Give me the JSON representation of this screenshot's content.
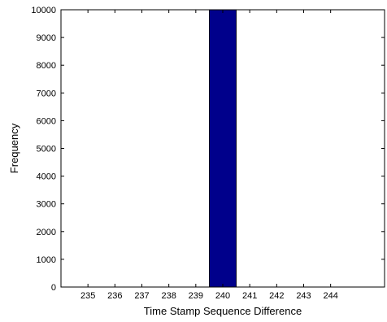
{
  "chart_data": {
    "type": "bar",
    "title": "",
    "xlabel": "Time Stamp Sequence Difference",
    "ylabel": "Frequency",
    "xlim": [
      234,
      246
    ],
    "ylim": [
      0,
      10000
    ],
    "x_ticks": [
      235,
      236,
      237,
      238,
      239,
      240,
      241,
      242,
      243,
      244
    ],
    "y_ticks": [
      0,
      1000,
      2000,
      3000,
      4000,
      5000,
      6000,
      7000,
      8000,
      9000,
      10000
    ],
    "bars": [
      {
        "x_start": 239.5,
        "x_end": 240.5,
        "value": 10000
      }
    ],
    "bar_color": "#00008b",
    "grid": false
  }
}
